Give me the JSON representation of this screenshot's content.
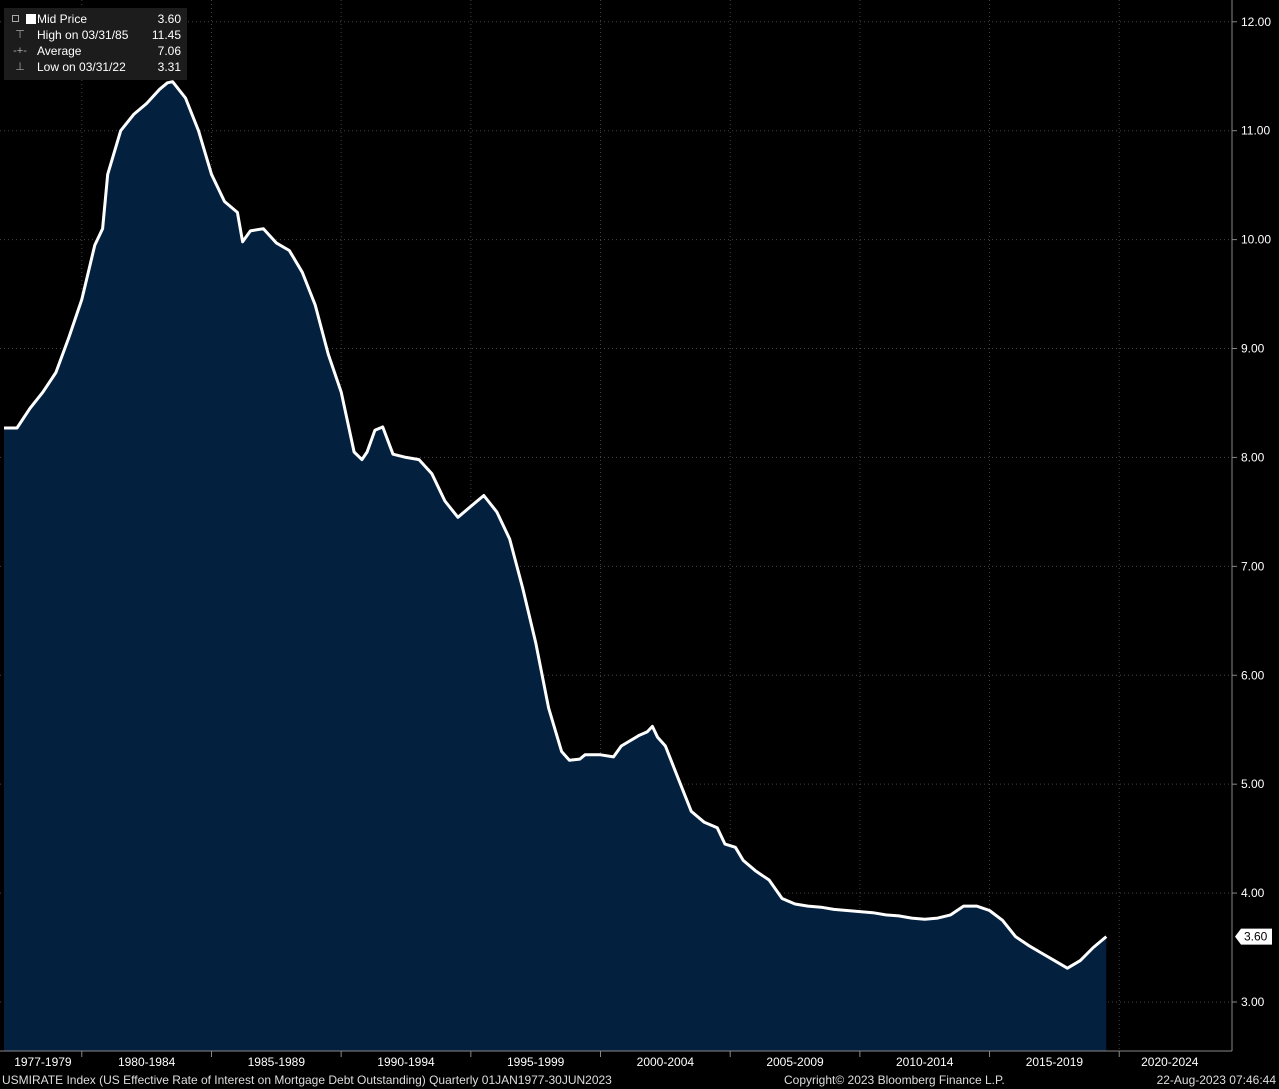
{
  "legend": {
    "items": [
      {
        "name": "Mid Price",
        "value": "3.60"
      },
      {
        "name": "High on 03/31/85",
        "value": "11.45"
      },
      {
        "name": "Average",
        "value": "7.06"
      },
      {
        "name": "Low on 03/31/22",
        "value": "3.31"
      }
    ]
  },
  "footer": {
    "description": "USMIRATE Index (US Effective Rate of Interest on Mortgage Debt Outstanding)  Quarterly 01JAN1977-30JUN2023",
    "copyright": "Copyright© 2023 Bloomberg Finance L.P.",
    "timestamp": "22-Aug-2023 07:46:44"
  },
  "colors": {
    "background": "#000000",
    "area_fill": "#03203f",
    "line": "#ffffff",
    "grid": "#444444",
    "axis_text": "#ffffff"
  },
  "chart_data": {
    "type": "area",
    "x_range": [
      1977.0,
      2023.5
    ],
    "ylim": [
      2.55,
      12.2
    ],
    "y_ticks": [
      "12.00",
      "11.00",
      "10.00",
      "9.00",
      "8.00",
      "7.00",
      "6.00",
      "5.00",
      "4.00",
      "3.00"
    ],
    "x_tick_labels": [
      "1977-1979",
      "1980-1984",
      "1985-1989",
      "1990-1994",
      "1995-1999",
      "2000-2004",
      "2005-2009",
      "2010-2014",
      "2015-2019",
      "2020-2024"
    ],
    "last_value_label": "3.60",
    "grid": true,
    "points": [
      [
        1977.0,
        8.27
      ],
      [
        1977.5,
        8.27
      ],
      [
        1978.0,
        8.45
      ],
      [
        1978.5,
        8.6
      ],
      [
        1979.0,
        8.78
      ],
      [
        1979.5,
        9.1
      ],
      [
        1980.0,
        9.45
      ],
      [
        1980.5,
        9.95
      ],
      [
        1980.8,
        10.1
      ],
      [
        1981.0,
        10.6
      ],
      [
        1981.5,
        11.0
      ],
      [
        1982.0,
        11.15
      ],
      [
        1982.5,
        11.25
      ],
      [
        1983.0,
        11.38
      ],
      [
        1983.3,
        11.44
      ],
      [
        1983.5,
        11.45
      ],
      [
        1984.0,
        11.3
      ],
      [
        1984.5,
        11.0
      ],
      [
        1985.0,
        10.6
      ],
      [
        1985.5,
        10.35
      ],
      [
        1986.0,
        10.25
      ],
      [
        1986.2,
        9.98
      ],
      [
        1986.5,
        10.08
      ],
      [
        1987.0,
        10.1
      ],
      [
        1987.5,
        9.97
      ],
      [
        1988.0,
        9.9
      ],
      [
        1988.5,
        9.7
      ],
      [
        1989.0,
        9.4
      ],
      [
        1989.5,
        8.95
      ],
      [
        1990.0,
        8.6
      ],
      [
        1990.5,
        8.05
      ],
      [
        1990.8,
        7.98
      ],
      [
        1991.0,
        8.05
      ],
      [
        1991.3,
        8.25
      ],
      [
        1991.6,
        8.28
      ],
      [
        1992.0,
        8.03
      ],
      [
        1992.5,
        8.0
      ],
      [
        1993.0,
        7.98
      ],
      [
        1993.5,
        7.85
      ],
      [
        1994.0,
        7.6
      ],
      [
        1994.5,
        7.45
      ],
      [
        1995.0,
        7.55
      ],
      [
        1995.5,
        7.65
      ],
      [
        1996.0,
        7.5
      ],
      [
        1996.5,
        7.25
      ],
      [
        1997.0,
        6.8
      ],
      [
        1997.5,
        6.3
      ],
      [
        1998.0,
        5.7
      ],
      [
        1998.5,
        5.3
      ],
      [
        1998.8,
        5.22
      ],
      [
        1999.2,
        5.23
      ],
      [
        1999.4,
        5.27
      ],
      [
        2000.0,
        5.27
      ],
      [
        2000.5,
        5.25
      ],
      [
        2000.8,
        5.35
      ],
      [
        2001.5,
        5.45
      ],
      [
        2001.8,
        5.48
      ],
      [
        2002.0,
        5.53
      ],
      [
        2002.2,
        5.43
      ],
      [
        2002.5,
        5.35
      ],
      [
        2003.0,
        5.05
      ],
      [
        2003.5,
        4.75
      ],
      [
        2004.0,
        4.65
      ],
      [
        2004.5,
        4.6
      ],
      [
        2004.8,
        4.45
      ],
      [
        2005.2,
        4.42
      ],
      [
        2005.5,
        4.3
      ],
      [
        2006.0,
        4.2
      ],
      [
        2006.5,
        4.12
      ],
      [
        2007.0,
        3.95
      ],
      [
        2007.5,
        3.9
      ],
      [
        2008.0,
        3.88
      ],
      [
        2008.5,
        3.87
      ],
      [
        2009.0,
        3.85
      ],
      [
        2009.5,
        3.84
      ],
      [
        2010.0,
        3.83
      ],
      [
        2010.5,
        3.82
      ],
      [
        2011.0,
        3.8
      ],
      [
        2011.5,
        3.79
      ],
      [
        2012.0,
        3.77
      ],
      [
        2012.5,
        3.76
      ],
      [
        2013.0,
        3.77
      ],
      [
        2013.5,
        3.8
      ],
      [
        2014.0,
        3.88
      ],
      [
        2014.5,
        3.88
      ],
      [
        2015.0,
        3.84
      ],
      [
        2015.5,
        3.75
      ],
      [
        2016.0,
        3.6
      ],
      [
        2016.5,
        3.52
      ],
      [
        2017.0,
        3.45
      ],
      [
        2017.5,
        3.38
      ],
      [
        2018.0,
        3.31
      ],
      [
        2018.5,
        3.38
      ],
      [
        2019.0,
        3.5
      ],
      [
        2019.5,
        3.6
      ]
    ]
  }
}
